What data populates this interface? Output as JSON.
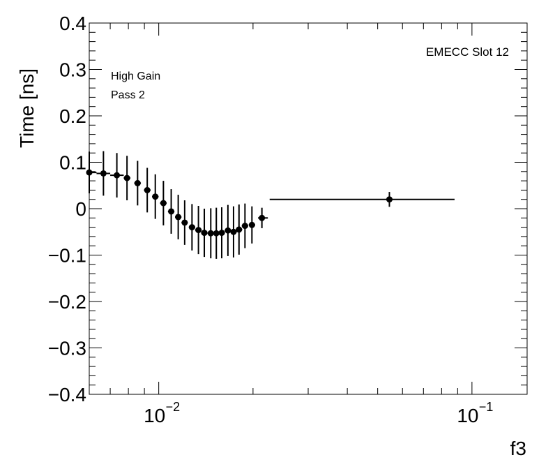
{
  "chart_data": {
    "type": "scatter",
    "xlabel": "f3",
    "ylabel": "Time [ns]",
    "xscale": "log",
    "xlim": [
      0.006,
      0.15
    ],
    "ylim": [
      -0.4,
      0.4
    ],
    "y_ticks": [
      0.4,
      0.3,
      0.2,
      0.1,
      0,
      -0.1,
      -0.2,
      -0.3,
      -0.4
    ],
    "y_tick_labels": [
      "0.4",
      "0.3",
      "0.2",
      "0.1",
      "0",
      "−0.1",
      "−0.2",
      "−0.3",
      "−0.4"
    ],
    "x_ticks": [
      {
        "base": "10",
        "exp": "−2",
        "value": 0.01
      },
      {
        "base": "10",
        "exp": "−1",
        "value": 0.1
      }
    ],
    "annotations": {
      "top_right": "EMECC Slot 12",
      "line1": "High Gain",
      "line2": "Pass 2"
    },
    "points": [
      {
        "x": 0.006,
        "xlo": 0.006,
        "xhi": 0.00633,
        "y": 0.078,
        "err": 0.045
      },
      {
        "x": 0.00666,
        "xlo": 0.00633,
        "xhi": 0.007,
        "y": 0.076,
        "err": 0.048
      },
      {
        "x": 0.00735,
        "xlo": 0.007,
        "xhi": 0.00773,
        "y": 0.072,
        "err": 0.048
      },
      {
        "x": 0.00792,
        "xlo": 0.00773,
        "xhi": 0.00812,
        "y": 0.066,
        "err": 0.048
      },
      {
        "x": 0.00856,
        "xlo": 0.00835,
        "xhi": 0.00877,
        "y": 0.055,
        "err": 0.048
      },
      {
        "x": 0.00919,
        "xlo": 0.00897,
        "xhi": 0.00942,
        "y": 0.04,
        "err": 0.048
      },
      {
        "x": 0.00975,
        "xlo": 0.00952,
        "xhi": 0.00999,
        "y": 0.026,
        "err": 0.048
      },
      {
        "x": 0.01035,
        "xlo": 0.0101,
        "xhi": 0.0106,
        "y": 0.012,
        "err": 0.048
      },
      {
        "x": 0.01096,
        "xlo": 0.0107,
        "xhi": 0.01122,
        "y": -0.006,
        "err": 0.048
      },
      {
        "x": 0.01154,
        "xlo": 0.01127,
        "xhi": 0.01182,
        "y": -0.018,
        "err": 0.048
      },
      {
        "x": 0.0121,
        "xlo": 0.01182,
        "xhi": 0.01238,
        "y": -0.03,
        "err": 0.048
      },
      {
        "x": 0.01277,
        "xlo": 0.01247,
        "xhi": 0.01308,
        "y": -0.04,
        "err": 0.05
      },
      {
        "x": 0.01339,
        "xlo": 0.01307,
        "xhi": 0.01371,
        "y": -0.046,
        "err": 0.052
      },
      {
        "x": 0.01398,
        "xlo": 0.01365,
        "xhi": 0.01431,
        "y": -0.052,
        "err": 0.052
      },
      {
        "x": 0.01466,
        "xlo": 0.01432,
        "xhi": 0.01501,
        "y": -0.053,
        "err": 0.054
      },
      {
        "x": 0.01527,
        "xlo": 0.01491,
        "xhi": 0.01563,
        "y": -0.053,
        "err": 0.055
      },
      {
        "x": 0.01589,
        "xlo": 0.01552,
        "xhi": 0.01627,
        "y": -0.052,
        "err": 0.055
      },
      {
        "x": 0.01663,
        "xlo": 0.01624,
        "xhi": 0.01703,
        "y": -0.047,
        "err": 0.055
      },
      {
        "x": 0.01733,
        "xlo": 0.01692,
        "xhi": 0.01775,
        "y": -0.05,
        "err": 0.055
      },
      {
        "x": 0.01804,
        "xlo": 0.01762,
        "xhi": 0.01847,
        "y": -0.045,
        "err": 0.054
      },
      {
        "x": 0.01885,
        "xlo": 0.01841,
        "xhi": 0.0193,
        "y": -0.037,
        "err": 0.048
      },
      {
        "x": 0.01984,
        "xlo": 0.01938,
        "xhi": 0.02032,
        "y": -0.035,
        "err": 0.04
      },
      {
        "x": 0.02135,
        "xlo": 0.02075,
        "xhi": 0.0223,
        "y": -0.02,
        "err": 0.022
      },
      {
        "x": 0.0545,
        "xlo": 0.0226,
        "xhi": 0.088,
        "y": 0.02,
        "err": 0.016
      }
    ]
  }
}
